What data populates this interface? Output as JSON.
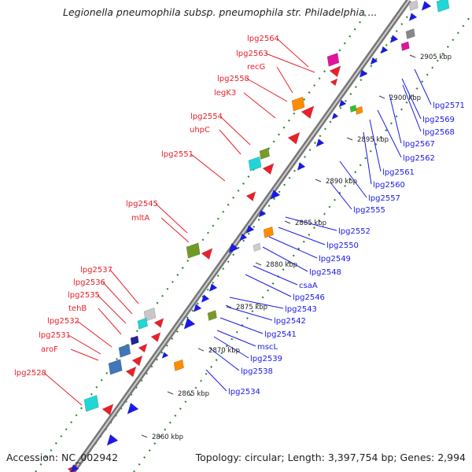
{
  "title": "Legionella pneumophila subsp. pneumophila str. Philadelphia ...",
  "footer": {
    "accession": "Accession: NC_002942",
    "topology": "Topology: circular; Length: 3,397,754 bp; Genes: 2,994"
  },
  "colors": {
    "forward": "#e8202a",
    "reverse": "#1a1ae8",
    "backbone": "#8a8a8a",
    "dots": "#2e8b2e"
  },
  "position_ticks": [
    "2860 kbp",
    "2865 kbp",
    "2870 kbp",
    "2875 kbp",
    "2880 kbp",
    "2885 kbp",
    "2890 kbp",
    "2895 kbp",
    "2900 kbp",
    "2905 kbp"
  ],
  "forward_genes": [
    "lpg2564",
    "lpg2563",
    "recG",
    "lpg2558",
    "legK3",
    "lpg2554",
    "uhpC",
    "lpg2551",
    "lpg2545",
    "mltA",
    "lpg2537",
    "lpg2536",
    "lpg2535",
    "tehB",
    "lpg2532",
    "lpg2531",
    "aroF",
    "lpg2528"
  ],
  "reverse_genes": [
    "lpg2571",
    "lpg2569",
    "lpg2568",
    "lpg2567",
    "lpg2562",
    "lpg2561",
    "lpg2560",
    "lpg2557",
    "lpg2555",
    "lpg2552",
    "lpg2550",
    "lpg2549",
    "lpg2548",
    "csaA",
    "lpg2546",
    "lpg2543",
    "lpg2542",
    "lpg2541",
    "mscL",
    "lpg2539",
    "lpg2538",
    "lpg2534"
  ]
}
